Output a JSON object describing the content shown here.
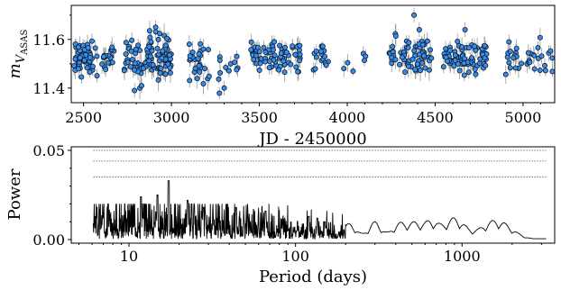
{
  "chart_data": [
    {
      "type": "scatter",
      "xlabel": "JD - 2450000",
      "ylabel_main": "m",
      "ylabel_sub": "V",
      "ylabel_subsub": "ASAS",
      "xlim": [
        2430,
        5180
      ],
      "ylim": [
        11.34,
        11.74
      ],
      "xticks": [
        2500,
        3000,
        3500,
        4000,
        4500,
        5000
      ],
      "xtick_labels": [
        "2500",
        "3000",
        "3500",
        "4000",
        "4500",
        "5000"
      ],
      "yticks": [
        11.4,
        11.6
      ],
      "ytick_labels": [
        "11.4",
        "11.6"
      ],
      "marker_color": "#3a8ee6",
      "errorbar_color": "#9a9a9a",
      "clusters": [
        {
          "x0": 2440,
          "x1": 2580,
          "n": 55,
          "mean": 11.53,
          "sd": 0.035,
          "err": 0.03
        },
        {
          "x0": 2600,
          "x1": 2680,
          "n": 18,
          "mean": 11.53,
          "sd": 0.03,
          "err": 0.03
        },
        {
          "x0": 2730,
          "x1": 2830,
          "n": 28,
          "mean": 11.5,
          "sd": 0.045,
          "err": 0.035
        },
        {
          "x0": 2840,
          "x1": 3000,
          "n": 75,
          "mean": 11.53,
          "sd": 0.04,
          "err": 0.035
        },
        {
          "x0": 3100,
          "x1": 3220,
          "n": 28,
          "mean": 11.5,
          "sd": 0.04,
          "err": 0.035
        },
        {
          "x0": 3250,
          "x1": 3380,
          "n": 12,
          "mean": 11.5,
          "sd": 0.05,
          "err": 0.03
        },
        {
          "x0": 3450,
          "x1": 3740,
          "n": 70,
          "mean": 11.53,
          "sd": 0.03,
          "err": 0.03
        },
        {
          "x0": 3800,
          "x1": 3900,
          "n": 16,
          "mean": 11.52,
          "sd": 0.025,
          "err": 0.025
        },
        {
          "x0": 3950,
          "x1": 4120,
          "n": 6,
          "mean": 11.52,
          "sd": 0.03,
          "err": 0.03
        },
        {
          "x0": 4230,
          "x1": 4480,
          "n": 65,
          "mean": 11.53,
          "sd": 0.035,
          "err": 0.035
        },
        {
          "x0": 4540,
          "x1": 4800,
          "n": 75,
          "mean": 11.52,
          "sd": 0.035,
          "err": 0.03
        },
        {
          "x0": 4900,
          "x1": 5000,
          "n": 16,
          "mean": 11.52,
          "sd": 0.03,
          "err": 0.03
        },
        {
          "x0": 5020,
          "x1": 5170,
          "n": 20,
          "mean": 11.52,
          "sd": 0.035,
          "err": 0.03
        }
      ],
      "notable_points": [
        {
          "x": 2790,
          "y": 11.39
        },
        {
          "x": 2830,
          "y": 11.41
        },
        {
          "x": 3300,
          "y": 11.4
        },
        {
          "x": 4380,
          "y": 11.7
        },
        {
          "x": 4410,
          "y": 11.64
        },
        {
          "x": 4670,
          "y": 11.64
        },
        {
          "x": 2910,
          "y": 11.65
        },
        {
          "x": 4920,
          "y": 11.59
        }
      ]
    },
    {
      "type": "line",
      "xlabel": "Period (days)",
      "ylabel": "Power",
      "xscale": "log",
      "xlim": [
        4.5,
        3600
      ],
      "ylim": [
        -0.002,
        0.052
      ],
      "xticks": [
        10,
        100,
        1000
      ],
      "xtick_labels": [
        "10",
        "100",
        "1000"
      ],
      "yticks": [
        0,
        0.05
      ],
      "ytick_labels": [
        "0.00",
        "0.05"
      ],
      "line_color": "#000000",
      "threshold_lines": [
        0.035,
        0.044,
        0.05
      ],
      "threshold_style": "dotted",
      "x_start": 6.1,
      "x_end": 3200,
      "peaks": [
        {
          "x": 17.3,
          "y": 0.033
        },
        {
          "x": 14.8,
          "y": 0.025
        },
        {
          "x": 22.5,
          "y": 0.022
        },
        {
          "x": 11.8,
          "y": 0.024
        },
        {
          "x": 28,
          "y": 0.018
        },
        {
          "x": 44,
          "y": 0.018
        },
        {
          "x": 66,
          "y": 0.016
        },
        {
          "x": 120,
          "y": 0.013
        },
        {
          "x": 135,
          "y": 0.012
        },
        {
          "x": 150,
          "y": 0.01
        },
        {
          "x": 210,
          "y": 0.01
        },
        {
          "x": 300,
          "y": 0.01
        },
        {
          "x": 420,
          "y": 0.009
        },
        {
          "x": 650,
          "y": 0.011
        },
        {
          "x": 900,
          "y": 0.012
        },
        {
          "x": 1600,
          "y": 0.011
        }
      ],
      "smooth_humps": [
        {
          "x": 210,
          "y": 0.009,
          "w": 0.045
        },
        {
          "x": 300,
          "y": 0.01,
          "w": 0.04
        },
        {
          "x": 420,
          "y": 0.009,
          "w": 0.045
        },
        {
          "x": 520,
          "y": 0.008,
          "w": 0.04
        },
        {
          "x": 650,
          "y": 0.01,
          "w": 0.045
        },
        {
          "x": 900,
          "y": 0.012,
          "w": 0.06
        },
        {
          "x": 1600,
          "y": 0.011,
          "w": 0.09
        }
      ]
    }
  ]
}
